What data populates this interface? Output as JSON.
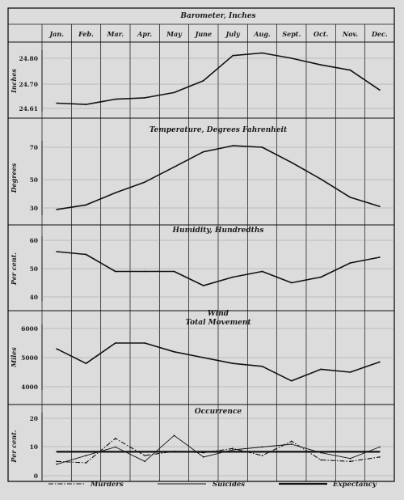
{
  "months": [
    "Jan.",
    "Feb.",
    "Mar.",
    "Apr.",
    "May",
    "June",
    "July",
    "Aug.",
    "Sept.",
    "Oct.",
    "Nov.",
    "Dec."
  ],
  "legend": {
    "murders": "Murders",
    "suicides": "Suicides",
    "expectancy": "Expectancy"
  },
  "chart_data": [
    {
      "type": "line",
      "title": "Barometer, Inches",
      "ylabel": "Inches",
      "ylim": [
        24.6,
        24.85
      ],
      "yticks": [
        "24.80",
        "24.70",
        "24.61"
      ],
      "series": [
        {
          "values": [
            24.63,
            24.625,
            24.645,
            24.65,
            24.67,
            24.715,
            24.81,
            24.82,
            24.8,
            24.775,
            24.755,
            24.68
          ]
        }
      ]
    },
    {
      "type": "line",
      "title": "Temperature, Degrees Fahrenheit",
      "ylabel": "Degrees",
      "ylim": [
        27,
        73
      ],
      "yticks": [
        "70",
        "50",
        "30"
      ],
      "series": [
        {
          "values": [
            29,
            32,
            40,
            47,
            57,
            67,
            71,
            70,
            60,
            49,
            37,
            31
          ]
        }
      ]
    },
    {
      "type": "line",
      "title": "Humidity, Hundredths",
      "ylabel": "Per cent.",
      "ylim": [
        40,
        61
      ],
      "yticks": [
        "60",
        "50",
        "40"
      ],
      "series": [
        {
          "values": [
            56,
            55,
            49,
            49,
            49,
            44,
            47,
            49,
            45,
            47,
            52,
            54
          ]
        }
      ]
    },
    {
      "type": "line",
      "title": "Wind",
      "subtitle": "Total Movement",
      "ylabel": "Miles",
      "ylim": [
        4000,
        6000
      ],
      "yticks": [
        "6000",
        "5000",
        "4000"
      ],
      "series": [
        {
          "values": [
            5300,
            4800,
            5500,
            5500,
            5200,
            5000,
            4800,
            4700,
            4200,
            4600,
            4500,
            4850
          ]
        }
      ]
    },
    {
      "type": "line",
      "title": "Occurrence",
      "ylabel": "Per cent.",
      "ylim": [
        0,
        21
      ],
      "yticks": [
        "20",
        "10",
        "0"
      ],
      "series": [
        {
          "name": "Murders",
          "style": "dash-dot",
          "values": [
            5,
            4.5,
            13,
            7,
            8.5,
            8,
            9.5,
            7,
            12,
            5.5,
            5,
            6.5
          ]
        },
        {
          "name": "Suicides",
          "style": "thin",
          "values": [
            4,
            7,
            10,
            5,
            14,
            6.5,
            9,
            10,
            11,
            8,
            6,
            10
          ]
        },
        {
          "name": "Expectancy",
          "style": "thick",
          "values": [
            8.33,
            8.33,
            8.33,
            8.33,
            8.33,
            8.33,
            8.33,
            8.33,
            8.33,
            8.33,
            8.33,
            8.33
          ]
        }
      ]
    }
  ]
}
